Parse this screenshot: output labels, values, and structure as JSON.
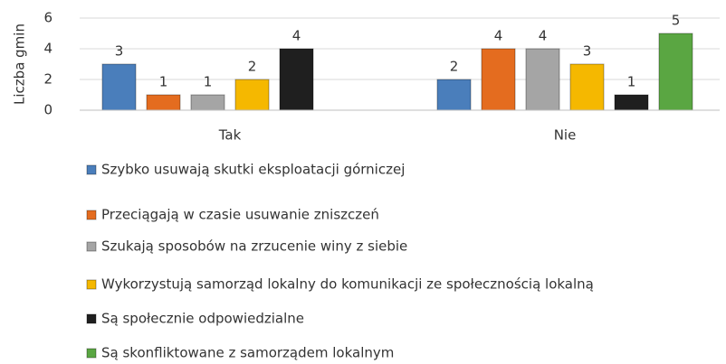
{
  "chart_data": {
    "type": "bar",
    "y_axis_label": "Liczba gmin",
    "categories": [
      "Tak",
      "Nie"
    ],
    "series": [
      {
        "name": "Szybko usuwają skutki eksploatacji górniczej",
        "color": "#4a7ebb",
        "values": [
          3,
          2
        ]
      },
      {
        "name": "Przeciągają w czasie usuwanie zniszczeń",
        "color": "#e46c1f",
        "values": [
          1,
          4
        ]
      },
      {
        "name": "Szukają sposobów na zrzucenie winy z siebie",
        "color": "#a5a5a5",
        "values": [
          1,
          4
        ]
      },
      {
        "name": "Wykorzystują samorząd lokalny do komunikacji ze społecznością lokalną",
        "color": "#f5b800",
        "values": [
          2,
          3
        ]
      },
      {
        "name": "Są społecznie odpowiedzialne",
        "color": "#1f1f1f",
        "values": [
          4,
          1
        ]
      },
      {
        "name": "Są skonfliktowane z samorządem lokalnym",
        "color": "#5aa642",
        "values": [
          null,
          5
        ]
      }
    ],
    "ylim": [
      0,
      6
    ],
    "yticks": [
      0,
      2,
      4,
      6
    ],
    "grid": true,
    "data_labels": true
  }
}
